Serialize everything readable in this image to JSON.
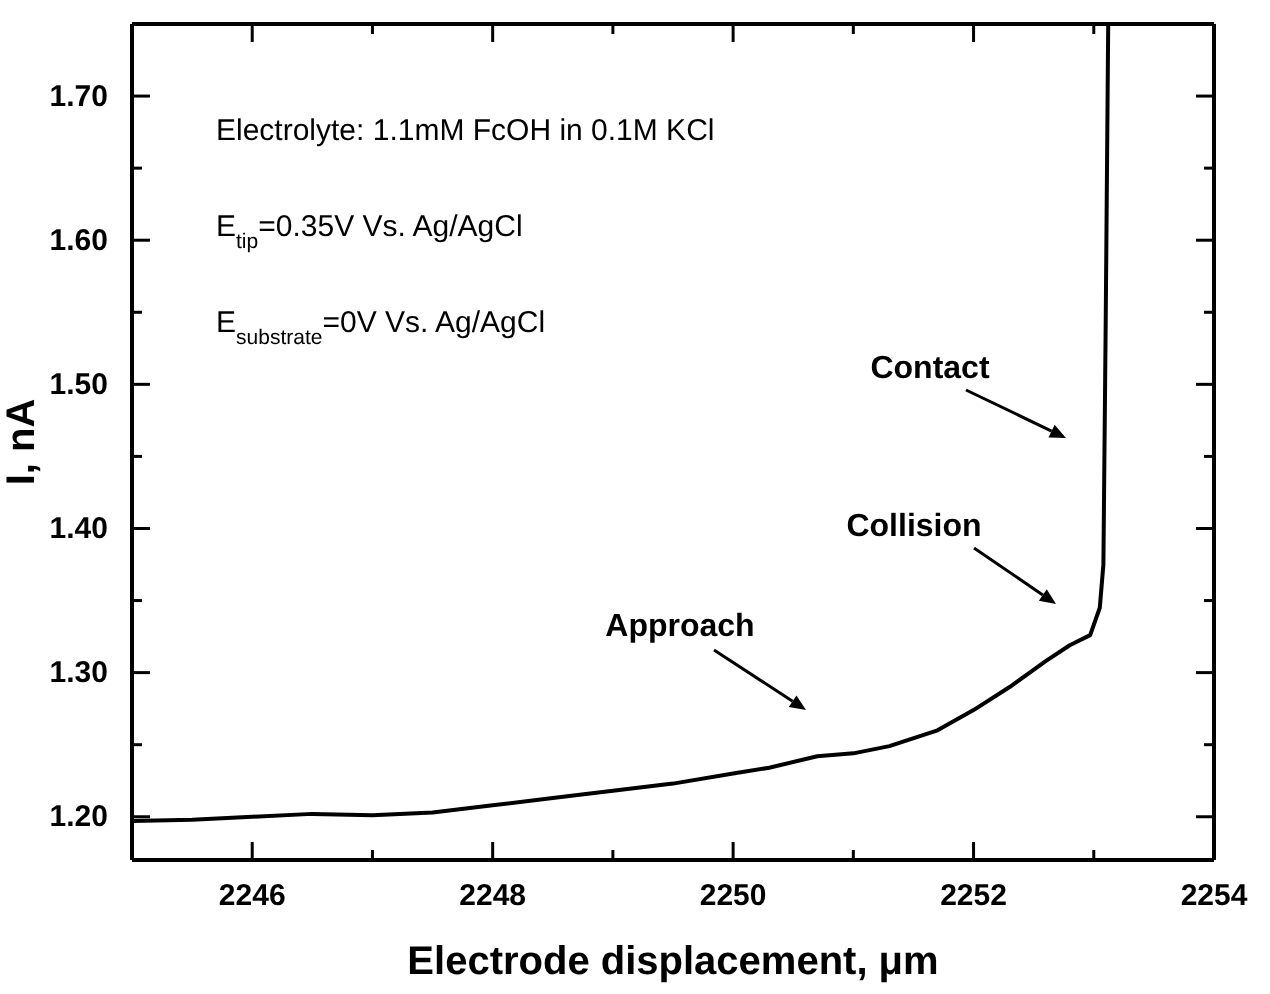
{
  "chart_data": {
    "type": "line",
    "xlabel": "Electrode displacement, μm",
    "ylabel": "I, nA",
    "x": [
      2245,
      2245.5,
      2246,
      2246.5,
      2247,
      2247.5,
      2248,
      2248.5,
      2249,
      2249.5,
      2250,
      2250.3,
      2250.7,
      2251,
      2251.3,
      2251.7,
      2252,
      2252.3,
      2252.6,
      2252.8,
      2252.97,
      2253.05,
      2253.08,
      2253.1,
      2253.12
    ],
    "series": [
      {
        "color": "#000000",
        "values": [
          1.197,
          1.198,
          1.2,
          1.202,
          1.201,
          1.203,
          1.208,
          1.213,
          1.218,
          1.223,
          1.23,
          1.234,
          1.242,
          1.244,
          1.249,
          1.26,
          1.274,
          1.29,
          1.308,
          1.319,
          1.326,
          1.345,
          1.375,
          1.55,
          1.75
        ]
      }
    ],
    "xlim": [
      2245,
      2254
    ],
    "ylim": [
      1.17,
      1.75
    ],
    "xticks": [
      {
        "value": 2245,
        "label": null
      },
      2246,
      {
        "value": 2247,
        "label": null
      },
      2248,
      {
        "value": 2249,
        "label": null
      },
      2250,
      {
        "value": 2251,
        "label": null
      },
      2252,
      {
        "value": 2253,
        "label": null
      },
      2254
    ],
    "yticks": [
      {
        "value": 1.2,
        "label": "1.20"
      },
      {
        "value": 1.25,
        "label": null
      },
      {
        "value": 1.3,
        "label": "1.30"
      },
      {
        "value": 1.35,
        "label": null
      },
      {
        "value": 1.4,
        "label": "1.40"
      },
      {
        "value": 1.45,
        "label": null
      },
      {
        "value": 1.5,
        "label": "1.50"
      },
      {
        "value": 1.55,
        "label": null
      },
      {
        "value": 1.6,
        "label": "1.60"
      },
      {
        "value": 1.65,
        "label": null
      },
      {
        "value": 1.7,
        "label": "1.70"
      }
    ],
    "grid": false,
    "marker": "none",
    "line_style": "solid",
    "annotations": [
      "Electrolyte: 1.1mM FcOH in 0.1M KCl",
      "E$_{tip}$=0.35V Vs. Ag/AgCl",
      "E$_{substrate}$=0V Vs. Ag/AgCl",
      "Contact",
      "Collision",
      "Approach"
    ]
  }
}
